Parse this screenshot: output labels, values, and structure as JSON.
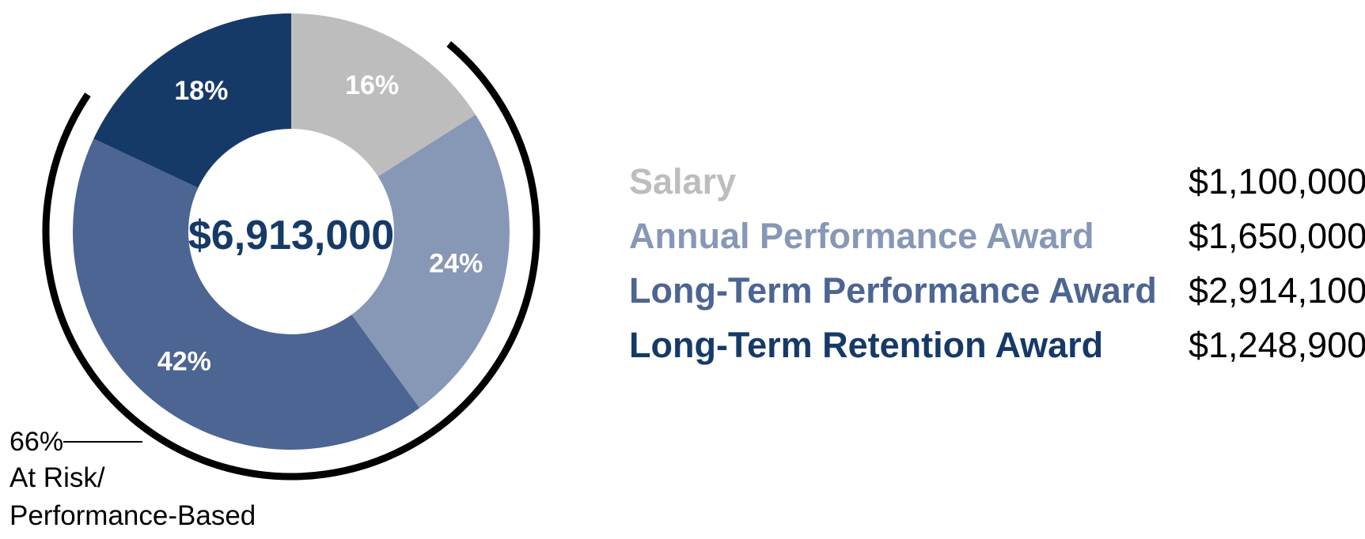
{
  "chart_data": {
    "type": "pie",
    "variant": "donut",
    "center_label": "$6,913,000",
    "slices": [
      {
        "name": "Salary",
        "percent": 16,
        "label": "16%",
        "amount": "$1,100,000",
        "color": "#bdbdbd"
      },
      {
        "name": "Annual Performance Award",
        "percent": 24,
        "label": "24%",
        "amount": "$1,650,000",
        "color": "#8797b6"
      },
      {
        "name": "Long-Term Performance Award",
        "percent": 42,
        "label": "42%",
        "amount": "$2,914,100",
        "color": "#4c6592"
      },
      {
        "name": "Long-Term Retention Award",
        "percent": 18,
        "label": "18%",
        "amount": "$1,248,900",
        "color": "#163a68"
      }
    ],
    "at_risk": {
      "percent_label": "66%",
      "lines": [
        "At Risk/",
        "Performance-Based"
      ]
    },
    "center_color": "#163a68",
    "legend_placement": "right"
  }
}
